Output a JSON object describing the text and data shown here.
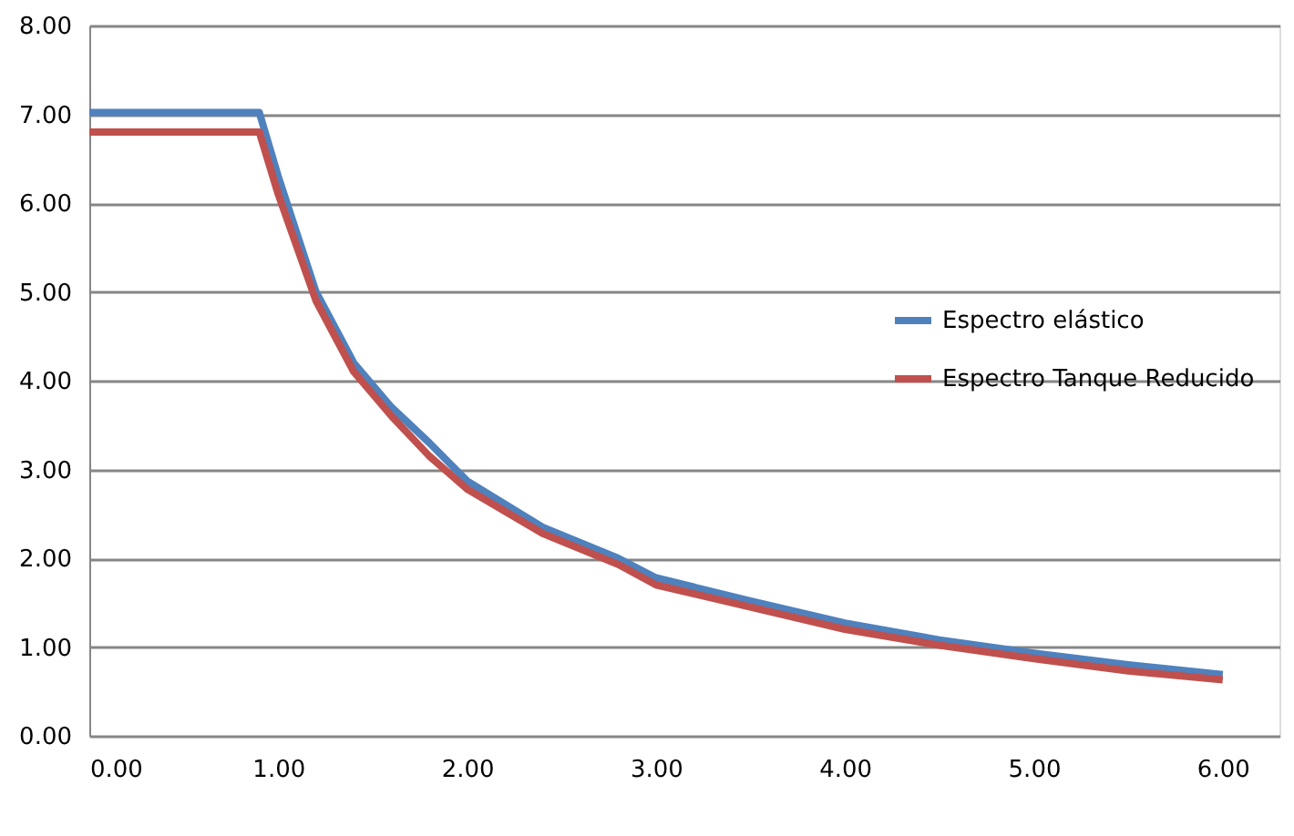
{
  "chart_data": {
    "type": "line",
    "xlim": [
      0,
      6.3
    ],
    "xticks": [
      {
        "value": 0,
        "label": "0.00"
      },
      {
        "value": 1,
        "label": "1.00"
      },
      {
        "value": 2,
        "label": "2.00"
      },
      {
        "value": 3,
        "label": "3.00"
      },
      {
        "value": 4,
        "label": "4.00"
      },
      {
        "value": 5,
        "label": "5.00"
      },
      {
        "value": 6,
        "label": "6.00"
      }
    ],
    "ylim": [
      0,
      8
    ],
    "yticks": [
      {
        "value": 0,
        "label": "0.00"
      },
      {
        "value": 1,
        "label": "1.00"
      },
      {
        "value": 2,
        "label": "2.00"
      },
      {
        "value": 3,
        "label": "3.00"
      },
      {
        "value": 4,
        "label": "4.00"
      },
      {
        "value": 5,
        "label": "5.00"
      },
      {
        "value": 6,
        "label": "6.00"
      },
      {
        "value": 7,
        "label": "7.00"
      },
      {
        "value": 8,
        "label": "8.00"
      }
    ],
    "grid": "y",
    "legend": "right",
    "marker": "none",
    "line_style": "solid",
    "series": [
      {
        "name": "Espectro elástico",
        "color": "#4f81bd",
        "x": [
          0,
          0.9,
          1.0,
          1.2,
          1.4,
          1.6,
          1.8,
          2.0,
          2.4,
          2.8,
          3.0,
          3.5,
          4.0,
          4.5,
          5.0,
          5.5,
          6.0
        ],
        "values": [
          7.02,
          7.02,
          6.3,
          5.0,
          4.2,
          3.7,
          3.3,
          2.87,
          2.35,
          2.0,
          1.78,
          1.52,
          1.27,
          1.08,
          0.93,
          0.8,
          0.69
        ]
      },
      {
        "name": "Espectro Tanque Reducido",
        "color": "#c0504d",
        "x": [
          0,
          0.9,
          1.0,
          1.2,
          1.4,
          1.6,
          1.8,
          2.0,
          2.4,
          2.8,
          3.0,
          3.5,
          4.0,
          4.5,
          5.0,
          5.5,
          6.0
        ],
        "values": [
          6.8,
          6.8,
          6.1,
          4.9,
          4.1,
          3.6,
          3.15,
          2.78,
          2.28,
          1.93,
          1.7,
          1.45,
          1.2,
          1.02,
          0.87,
          0.73,
          0.63
        ]
      }
    ]
  }
}
